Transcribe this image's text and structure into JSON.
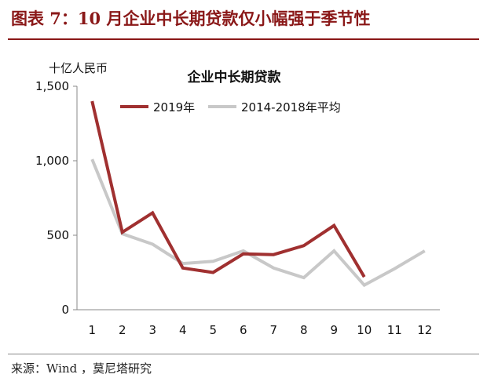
{
  "figure_title": "图表 7：10 月企业中长期贷款仅小幅强于季节性",
  "source": "来源：Wind ，莫尼塔研究",
  "chart_data": {
    "type": "line",
    "title": "企业中长期贷款",
    "ylabel": "十亿人民币",
    "xlabel": "",
    "x": [
      "1",
      "2",
      "3",
      "4",
      "5",
      "6",
      "7",
      "8",
      "9",
      "10",
      "11",
      "12"
    ],
    "ylim": [
      0,
      1500
    ],
    "yticks": [
      0,
      500,
      1000,
      1500
    ],
    "ytick_labels": [
      "0",
      "500",
      "1,000",
      "1,500"
    ],
    "grid": false,
    "legend_position": "top",
    "series": [
      {
        "name": "2019年",
        "color": "#a03030",
        "values": [
          1400,
          520,
          650,
          280,
          250,
          375,
          370,
          430,
          565,
          220,
          null,
          null
        ]
      },
      {
        "name": "2014-2018年平均",
        "color": "#c8c8c8",
        "values": [
          1010,
          510,
          440,
          310,
          325,
          395,
          280,
          215,
          395,
          165,
          275,
          395
        ]
      }
    ]
  }
}
